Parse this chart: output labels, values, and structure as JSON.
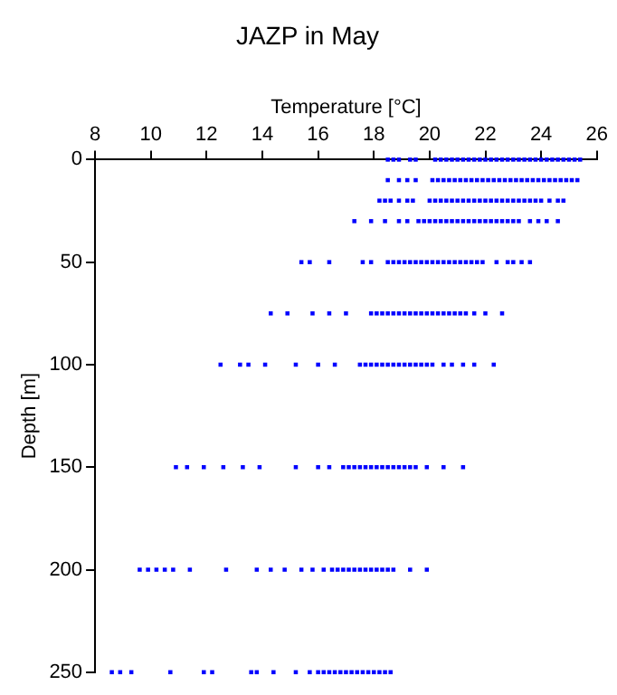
{
  "chart_data": {
    "type": "scatter",
    "title": "JAZP in May",
    "xlabel": "Temperature [°C]",
    "ylabel": "Depth [m]",
    "xlim": [
      8,
      26
    ],
    "xticks": [
      8,
      10,
      12,
      14,
      16,
      18,
      20,
      22,
      24,
      26
    ],
    "ylim": [
      250,
      0
    ],
    "yticks": [
      0,
      50,
      100,
      150,
      200,
      250
    ],
    "grid": false,
    "legend": false,
    "marker": "square",
    "series": [
      {
        "color": "#0000ff",
        "x": [
          18.5,
          18.7,
          18.9,
          19.3,
          19.5,
          20.2,
          20.4,
          20.6,
          20.8,
          21.0,
          21.2,
          21.4,
          21.6,
          21.8,
          22.0,
          22.2,
          22.4,
          22.6,
          22.8,
          23.0,
          23.2,
          23.4,
          23.6,
          23.8,
          24.0,
          24.2,
          24.4,
          24.6,
          24.8,
          25.0,
          25.2,
          25.4
        ],
        "values": [
          0,
          0,
          0,
          0,
          0,
          0,
          0,
          0,
          0,
          0,
          0,
          0,
          0,
          0,
          0,
          0,
          0,
          0,
          0,
          0,
          0,
          0,
          0,
          0,
          0,
          0,
          0,
          0,
          0,
          0,
          0,
          0
        ]
      },
      {
        "color": "#0000ff",
        "x": [
          18.5,
          18.9,
          19.2,
          19.5,
          20.1,
          20.3,
          20.5,
          20.7,
          20.9,
          21.1,
          21.3,
          21.5,
          21.7,
          21.9,
          22.1,
          22.3,
          22.5,
          22.7,
          22.9,
          23.1,
          23.3,
          23.5,
          23.7,
          23.9,
          24.1,
          24.3,
          24.5,
          24.7,
          24.9,
          25.1,
          25.3
        ],
        "values": [
          10,
          10,
          10,
          10,
          10,
          10,
          10,
          10,
          10,
          10,
          10,
          10,
          10,
          10,
          10,
          10,
          10,
          10,
          10,
          10,
          10,
          10,
          10,
          10,
          10,
          10,
          10,
          10,
          10,
          10,
          10
        ]
      },
      {
        "color": "#0000ff",
        "x": [
          18.2,
          18.4,
          18.6,
          18.9,
          19.2,
          19.4,
          20.0,
          20.2,
          20.4,
          20.6,
          20.8,
          21.0,
          21.2,
          21.4,
          21.6,
          21.8,
          22.0,
          22.2,
          22.4,
          22.6,
          22.8,
          23.0,
          23.2,
          23.4,
          23.6,
          23.8,
          24.0,
          24.3,
          24.6,
          24.8
        ],
        "values": [
          20,
          20,
          20,
          20,
          20,
          20,
          20,
          20,
          20,
          20,
          20,
          20,
          20,
          20,
          20,
          20,
          20,
          20,
          20,
          20,
          20,
          20,
          20,
          20,
          20,
          20,
          20,
          20,
          20,
          20
        ]
      },
      {
        "color": "#0000ff",
        "x": [
          17.3,
          17.9,
          18.4,
          18.9,
          19.2,
          19.6,
          19.8,
          20.0,
          20.2,
          20.4,
          20.6,
          20.8,
          21.0,
          21.2,
          21.4,
          21.6,
          21.8,
          22.0,
          22.2,
          22.4,
          22.6,
          22.8,
          23.0,
          23.2,
          23.6,
          23.9,
          24.2,
          24.6
        ],
        "values": [
          30,
          30,
          30,
          30,
          30,
          30,
          30,
          30,
          30,
          30,
          30,
          30,
          30,
          30,
          30,
          30,
          30,
          30,
          30,
          30,
          30,
          30,
          30,
          30,
          30,
          30,
          30,
          30
        ]
      },
      {
        "color": "#0000ff",
        "x": [
          15.4,
          15.7,
          16.4,
          17.6,
          17.9,
          18.5,
          18.7,
          18.9,
          19.1,
          19.3,
          19.5,
          19.7,
          19.9,
          20.1,
          20.3,
          20.5,
          20.7,
          20.9,
          21.1,
          21.3,
          21.5,
          21.7,
          21.9,
          22.4,
          22.8,
          23.0,
          23.3,
          23.6
        ],
        "values": [
          50,
          50,
          50,
          50,
          50,
          50,
          50,
          50,
          50,
          50,
          50,
          50,
          50,
          50,
          50,
          50,
          50,
          50,
          50,
          50,
          50,
          50,
          50,
          50,
          50,
          50,
          50,
          50
        ]
      },
      {
        "color": "#0000ff",
        "x": [
          14.3,
          14.9,
          15.8,
          16.4,
          17.0,
          17.9,
          18.1,
          18.3,
          18.5,
          18.7,
          18.9,
          19.1,
          19.3,
          19.5,
          19.7,
          19.9,
          20.1,
          20.3,
          20.5,
          20.7,
          20.9,
          21.1,
          21.3,
          21.6,
          22.0,
          22.6
        ],
        "values": [
          75,
          75,
          75,
          75,
          75,
          75,
          75,
          75,
          75,
          75,
          75,
          75,
          75,
          75,
          75,
          75,
          75,
          75,
          75,
          75,
          75,
          75,
          75,
          75,
          75,
          75
        ]
      },
      {
        "color": "#0000ff",
        "x": [
          12.5,
          13.2,
          13.5,
          14.1,
          15.2,
          16.0,
          16.6,
          17.5,
          17.7,
          17.9,
          18.1,
          18.3,
          18.5,
          18.7,
          18.9,
          19.1,
          19.3,
          19.5,
          19.7,
          19.9,
          20.1,
          20.5,
          20.8,
          21.2,
          21.6,
          22.3
        ],
        "values": [
          100,
          100,
          100,
          100,
          100,
          100,
          100,
          100,
          100,
          100,
          100,
          100,
          100,
          100,
          100,
          100,
          100,
          100,
          100,
          100,
          100,
          100,
          100,
          100,
          100,
          100
        ]
      },
      {
        "color": "#0000ff",
        "x": [
          10.9,
          11.3,
          11.9,
          12.6,
          13.3,
          13.9,
          15.2,
          16.0,
          16.4,
          16.9,
          17.1,
          17.3,
          17.5,
          17.7,
          17.9,
          18.1,
          18.3,
          18.5,
          18.7,
          18.9,
          19.1,
          19.3,
          19.5,
          19.9,
          20.5,
          21.2
        ],
        "values": [
          150,
          150,
          150,
          150,
          150,
          150,
          150,
          150,
          150,
          150,
          150,
          150,
          150,
          150,
          150,
          150,
          150,
          150,
          150,
          150,
          150,
          150,
          150,
          150,
          150,
          150
        ]
      },
      {
        "color": "#0000ff",
        "x": [
          9.6,
          9.9,
          10.2,
          10.5,
          10.8,
          11.4,
          12.7,
          13.8,
          14.3,
          14.8,
          15.4,
          15.8,
          16.2,
          16.5,
          16.7,
          16.9,
          17.1,
          17.3,
          17.5,
          17.7,
          17.9,
          18.1,
          18.3,
          18.5,
          18.7,
          19.3,
          19.9
        ],
        "values": [
          200,
          200,
          200,
          200,
          200,
          200,
          200,
          200,
          200,
          200,
          200,
          200,
          200,
          200,
          200,
          200,
          200,
          200,
          200,
          200,
          200,
          200,
          200,
          200,
          200,
          200,
          200
        ]
      },
      {
        "color": "#0000ff",
        "x": [
          8.6,
          8.9,
          9.3,
          10.7,
          11.9,
          12.2,
          13.6,
          13.8,
          14.4,
          15.2,
          15.7,
          16.0,
          16.2,
          16.4,
          16.6,
          16.8,
          17.0,
          17.2,
          17.4,
          17.6,
          17.8,
          18.0,
          18.2,
          18.4,
          18.6
        ],
        "values": [
          250,
          250,
          250,
          250,
          250,
          250,
          250,
          250,
          250,
          250,
          250,
          250,
          250,
          250,
          250,
          250,
          250,
          250,
          250,
          250,
          250,
          250,
          250,
          250,
          250
        ]
      }
    ]
  }
}
